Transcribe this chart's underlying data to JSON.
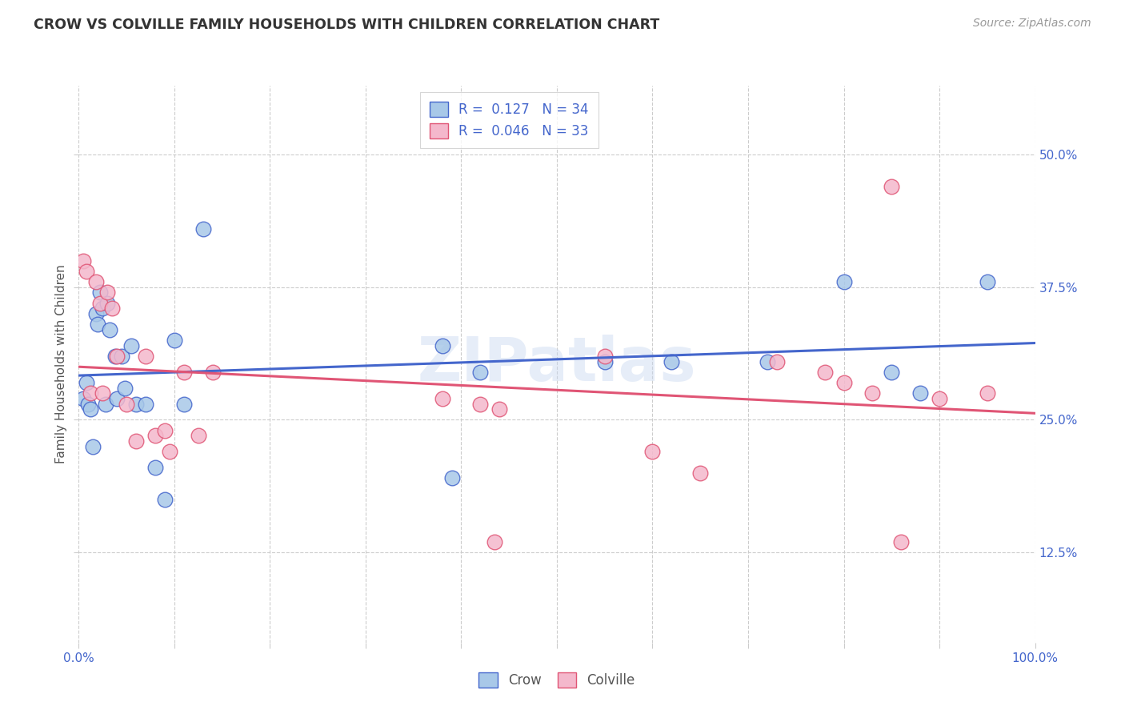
{
  "title": "CROW VS COLVILLE FAMILY HOUSEHOLDS WITH CHILDREN CORRELATION CHART",
  "source": "Source: ZipAtlas.com",
  "ylabel": "Family Households with Children",
  "ytick_labels": [
    "12.5%",
    "25.0%",
    "37.5%",
    "50.0%"
  ],
  "ytick_values": [
    0.125,
    0.25,
    0.375,
    0.5
  ],
  "xlim": [
    0.0,
    1.0
  ],
  "ylim": [
    0.04,
    0.565
  ],
  "crow_R": "0.127",
  "crow_N": "34",
  "colville_R": "0.046",
  "colville_N": "33",
  "crow_color": "#a8c8e8",
  "colville_color": "#f4b8cc",
  "crow_line_color": "#4466cc",
  "colville_line_color": "#e05575",
  "background_color": "#ffffff",
  "watermark": "ZIPatlas",
  "crow_x": [
    0.005,
    0.008,
    0.01,
    0.012,
    0.015,
    0.018,
    0.02,
    0.022,
    0.025,
    0.028,
    0.03,
    0.032,
    0.038,
    0.04,
    0.045,
    0.048,
    0.055,
    0.06,
    0.07,
    0.08,
    0.09,
    0.1,
    0.11,
    0.13,
    0.38,
    0.39,
    0.42,
    0.55,
    0.62,
    0.72,
    0.8,
    0.85,
    0.88,
    0.95
  ],
  "crow_y": [
    0.27,
    0.285,
    0.265,
    0.26,
    0.225,
    0.35,
    0.34,
    0.37,
    0.355,
    0.265,
    0.36,
    0.335,
    0.31,
    0.27,
    0.31,
    0.28,
    0.32,
    0.265,
    0.265,
    0.205,
    0.175,
    0.325,
    0.265,
    0.43,
    0.32,
    0.195,
    0.295,
    0.305,
    0.305,
    0.305,
    0.38,
    0.295,
    0.275,
    0.38
  ],
  "colville_x": [
    0.005,
    0.008,
    0.012,
    0.018,
    0.022,
    0.025,
    0.03,
    0.035,
    0.04,
    0.05,
    0.06,
    0.07,
    0.08,
    0.09,
    0.095,
    0.11,
    0.125,
    0.14,
    0.38,
    0.42,
    0.435,
    0.44,
    0.55,
    0.6,
    0.65,
    0.73,
    0.78,
    0.8,
    0.83,
    0.85,
    0.86,
    0.9,
    0.95
  ],
  "colville_y": [
    0.4,
    0.39,
    0.275,
    0.38,
    0.36,
    0.275,
    0.37,
    0.355,
    0.31,
    0.265,
    0.23,
    0.31,
    0.235,
    0.24,
    0.22,
    0.295,
    0.235,
    0.295,
    0.27,
    0.265,
    0.135,
    0.26,
    0.31,
    0.22,
    0.2,
    0.305,
    0.295,
    0.285,
    0.275,
    0.47,
    0.135,
    0.27,
    0.275
  ]
}
